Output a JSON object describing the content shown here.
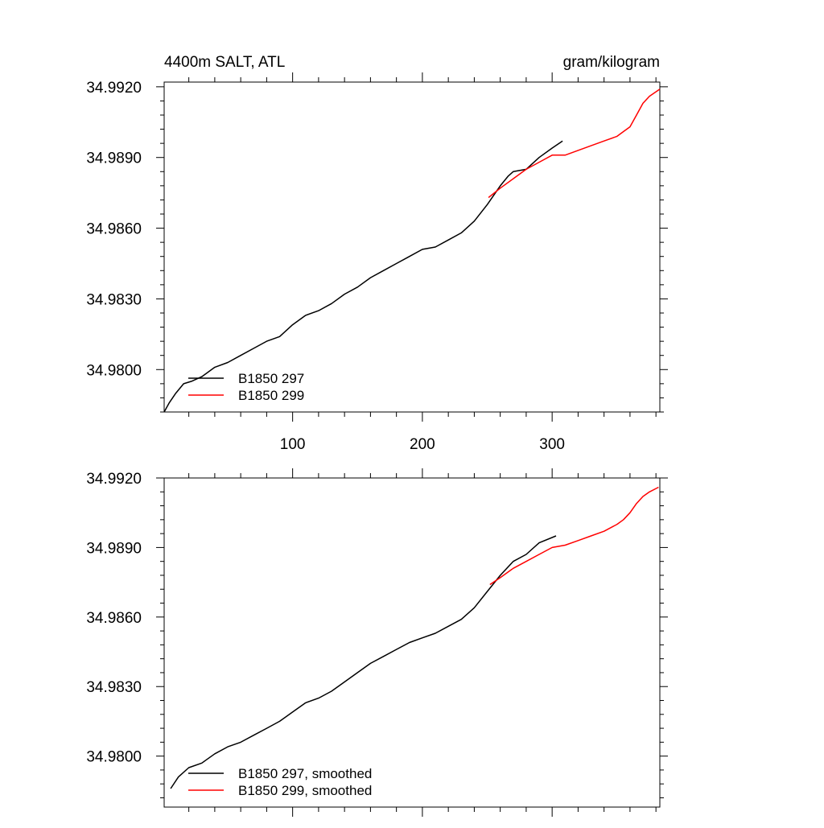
{
  "chart_data": [
    {
      "type": "line",
      "title": "4400m SALT, ATL",
      "units": "gram/kilogram",
      "xlim": [
        1,
        383
      ],
      "ylim": [
        34.9782,
        34.9922
      ],
      "x_tick_values": [
        100,
        200,
        300
      ],
      "x_tick_labels": [
        "100",
        "200",
        "300"
      ],
      "y_tick_values": [
        34.98,
        34.983,
        34.986,
        34.989,
        34.992
      ],
      "y_tick_labels": [
        "34.9800",
        "34.9830",
        "34.9860",
        "34.9890",
        "34.9920"
      ],
      "legend_placement": "bottom-left",
      "series": [
        {
          "name": "B1850 297",
          "color": "#000000",
          "x": [
            1,
            5,
            10,
            16,
            22,
            30,
            40,
            50,
            60,
            70,
            80,
            90,
            100,
            110,
            120,
            130,
            140,
            150,
            160,
            170,
            180,
            190,
            200,
            210,
            220,
            230,
            240,
            250,
            260,
            266,
            270,
            280,
            290,
            300,
            308
          ],
          "y": [
            34.9782,
            34.9786,
            34.979,
            34.9794,
            34.9795,
            34.9797,
            34.9801,
            34.9803,
            34.9806,
            34.9809,
            34.9812,
            34.9814,
            34.9819,
            34.9823,
            34.9825,
            34.9828,
            34.9832,
            34.9835,
            34.9839,
            34.9842,
            34.9845,
            34.9848,
            34.9851,
            34.9852,
            34.9855,
            34.9858,
            34.9863,
            34.987,
            34.9878,
            34.9882,
            34.9884,
            34.9885,
            34.989,
            34.9894,
            34.9897
          ]
        },
        {
          "name": "B1850 299",
          "color": "#ff0000",
          "x": [
            251,
            260,
            270,
            280,
            290,
            300,
            310,
            320,
            330,
            340,
            350,
            355,
            360,
            365,
            370,
            375,
            383
          ],
          "y": [
            34.9873,
            34.9877,
            34.9881,
            34.9885,
            34.9888,
            34.9891,
            34.9891,
            34.9893,
            34.9895,
            34.9897,
            34.9899,
            34.9901,
            34.9903,
            34.9908,
            34.9913,
            34.9916,
            34.9919
          ]
        }
      ]
    },
    {
      "type": "line",
      "title": "",
      "xlim": [
        1,
        383
      ],
      "ylim": [
        34.9778,
        34.992
      ],
      "x_tick_values": [
        100,
        200,
        300
      ],
      "x_tick_labels": [],
      "y_tick_values": [
        34.98,
        34.983,
        34.986,
        34.989,
        34.992
      ],
      "y_tick_labels": [
        "34.9800",
        "34.9830",
        "34.9860",
        "34.9890",
        "34.9920"
      ],
      "legend_placement": "bottom-left",
      "series": [
        {
          "name": "B1850 297, smoothed",
          "color": "#000000",
          "x": [
            6,
            12,
            20,
            30,
            40,
            50,
            60,
            70,
            80,
            90,
            100,
            110,
            120,
            130,
            140,
            150,
            160,
            170,
            180,
            190,
            200,
            210,
            220,
            230,
            240,
            250,
            260,
            270,
            280,
            290,
            303
          ],
          "y": [
            34.9786,
            34.9791,
            34.9795,
            34.9797,
            34.9801,
            34.9804,
            34.9806,
            34.9809,
            34.9812,
            34.9815,
            34.9819,
            34.9823,
            34.9825,
            34.9828,
            34.9832,
            34.9836,
            34.984,
            34.9843,
            34.9846,
            34.9849,
            34.9851,
            34.9853,
            34.9856,
            34.9859,
            34.9864,
            34.9871,
            34.9878,
            34.9884,
            34.9887,
            34.9892,
            34.9895
          ]
        },
        {
          "name": "B1850 299, smoothed",
          "color": "#ff0000",
          "x": [
            252,
            260,
            270,
            280,
            290,
            300,
            310,
            320,
            330,
            340,
            350,
            355,
            360,
            365,
            370,
            375,
            382
          ],
          "y": [
            34.9874,
            34.9877,
            34.9881,
            34.9884,
            34.9887,
            34.989,
            34.9891,
            34.9893,
            34.9895,
            34.9897,
            34.99,
            34.9902,
            34.9905,
            34.9909,
            34.9912,
            34.9914,
            34.9916
          ]
        }
      ]
    }
  ]
}
